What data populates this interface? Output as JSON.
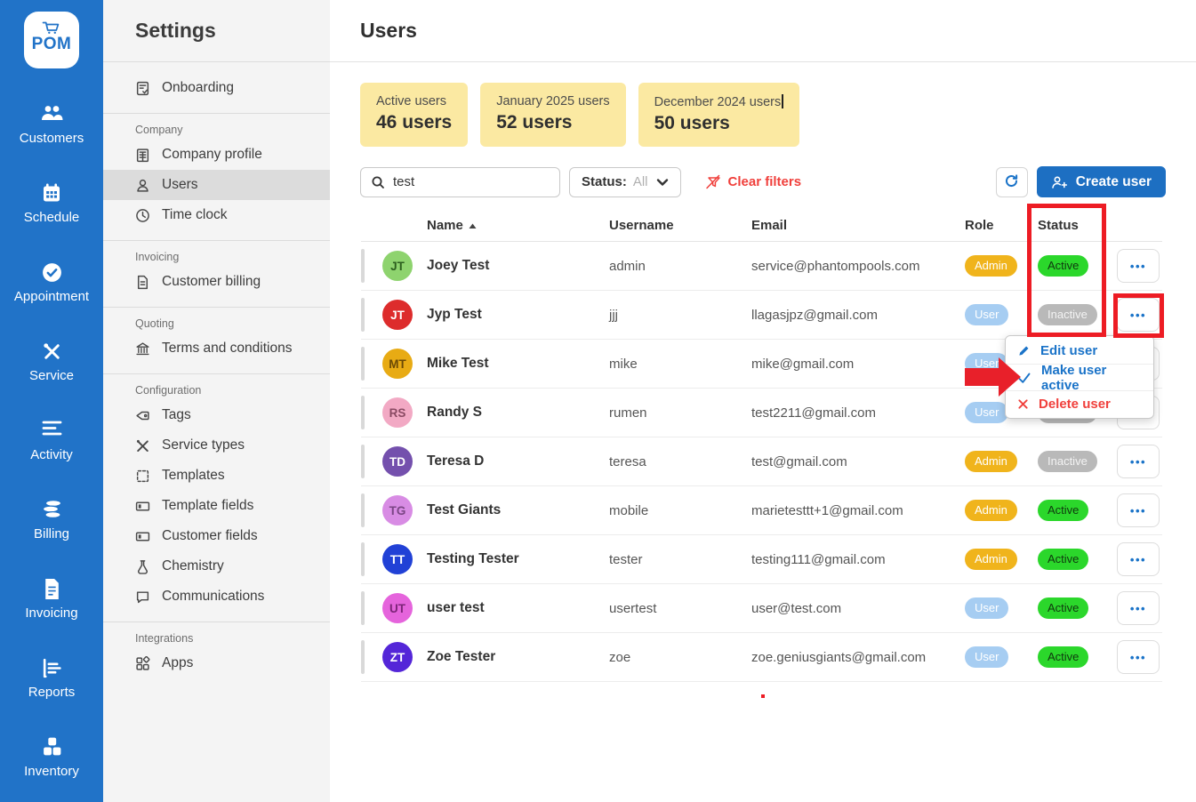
{
  "brand": {
    "logo_text": "POM",
    "logo_icon": "cart-icon"
  },
  "nav_rail": {
    "items": [
      {
        "label": "Customers",
        "icon": "customers-icon"
      },
      {
        "label": "Schedule",
        "icon": "schedule-icon"
      },
      {
        "label": "Appointment",
        "icon": "appointment-icon"
      },
      {
        "label": "Service",
        "icon": "service-icon"
      },
      {
        "label": "Activity",
        "icon": "activity-icon"
      },
      {
        "label": "Billing",
        "icon": "billing-icon"
      },
      {
        "label": "Invoicing",
        "icon": "invoicing-icon"
      },
      {
        "label": "Reports",
        "icon": "reports-icon"
      },
      {
        "label": "Inventory",
        "icon": "inventory-icon"
      }
    ]
  },
  "settings_sidebar": {
    "title": "Settings",
    "groups": [
      {
        "section": "",
        "items": [
          {
            "label": "Onboarding",
            "icon": "onboarding-icon",
            "selected": false
          }
        ]
      },
      {
        "section": "Company",
        "items": [
          {
            "label": "Company profile",
            "icon": "building-icon",
            "selected": false
          },
          {
            "label": "Users",
            "icon": "users-icon",
            "selected": true
          },
          {
            "label": "Time clock",
            "icon": "clock-icon",
            "selected": false
          }
        ]
      },
      {
        "section": "Invoicing",
        "items": [
          {
            "label": "Customer billing",
            "icon": "document-icon",
            "selected": false
          }
        ]
      },
      {
        "section": "Quoting",
        "items": [
          {
            "label": "Terms and conditions",
            "icon": "bank-icon",
            "selected": false
          }
        ]
      },
      {
        "section": "Configuration",
        "items": [
          {
            "label": "Tags",
            "icon": "tag-icon",
            "selected": false
          },
          {
            "label": "Service types",
            "icon": "tools-icon",
            "selected": false
          },
          {
            "label": "Templates",
            "icon": "template-icon",
            "selected": false
          },
          {
            "label": "Template fields",
            "icon": "template-fields-icon",
            "selected": false
          },
          {
            "label": "Customer fields",
            "icon": "customer-fields-icon",
            "selected": false
          },
          {
            "label": "Chemistry",
            "icon": "flask-icon",
            "selected": false
          },
          {
            "label": "Communications",
            "icon": "chat-icon",
            "selected": false
          }
        ]
      },
      {
        "section": "Integrations",
        "items": [
          {
            "label": "Apps",
            "icon": "apps-icon",
            "selected": false
          }
        ]
      }
    ]
  },
  "page": {
    "title": "Users"
  },
  "stats": [
    {
      "label": "Active users",
      "value": "46 users",
      "caret": false
    },
    {
      "label": "January 2025 users",
      "value": "52 users",
      "caret": false
    },
    {
      "label": "December 2024 users",
      "value": "50 users",
      "caret": true
    }
  ],
  "filters": {
    "search_value": "test",
    "status_label": "Status:",
    "status_value": "All",
    "clear_filters_label": "Clear filters",
    "create_user_label": "Create user"
  },
  "table": {
    "columns": [
      "Name",
      "Username",
      "Email",
      "Role",
      "Status"
    ],
    "rows": [
      {
        "initials": "JT",
        "avatar_bg": "#8ed36e",
        "avatar_fg": "#2c5e1e",
        "name": "Joey Test",
        "username": "admin",
        "email": "service@phantompools.com",
        "role": "Admin",
        "status": "Active"
      },
      {
        "initials": "JT",
        "avatar_bg": "#dd2c2c",
        "avatar_fg": "#ffffff",
        "name": "Jyp Test",
        "username": "jjj",
        "email": "llagasjpz@gmail.com",
        "role": "User",
        "status": "Inactive"
      },
      {
        "initials": "MT",
        "avatar_bg": "#e8ab14",
        "avatar_fg": "#6b4a06",
        "name": "Mike Test",
        "username": "mike",
        "email": "mike@gmail.com",
        "role": "User",
        "status": ""
      },
      {
        "initials": "RS",
        "avatar_bg": "#f2a9c4",
        "avatar_fg": "#8a4a63",
        "name": "Randy S",
        "username": "rumen",
        "email": "test2211@gmail.com",
        "role": "User",
        "status": "Inactive"
      },
      {
        "initials": "TD",
        "avatar_bg": "#7450ad",
        "avatar_fg": "#ffffff",
        "name": "Teresa D",
        "username": "teresa",
        "email": "test@gmail.com",
        "role": "Admin",
        "status": "Inactive"
      },
      {
        "initials": "TG",
        "avatar_bg": "#d88ce4",
        "avatar_fg": "#7a4584",
        "name": "Test Giants",
        "username": "mobile",
        "email": "marietesttt+1@gmail.com",
        "role": "Admin",
        "status": "Active"
      },
      {
        "initials": "TT",
        "avatar_bg": "#2141d6",
        "avatar_fg": "#ffffff",
        "name": "Testing Tester",
        "username": "tester",
        "email": "testing111@gmail.com",
        "role": "Admin",
        "status": "Active"
      },
      {
        "initials": "UT",
        "avatar_bg": "#e564dc",
        "avatar_fg": "#7c2478",
        "name": "user test",
        "username": "usertest",
        "email": "user@test.com",
        "role": "User",
        "status": "Active"
      },
      {
        "initials": "ZT",
        "avatar_bg": "#5426d8",
        "avatar_fg": "#ffffff",
        "name": "Zoe Tester",
        "username": "zoe",
        "email": "zoe.geniusgiants@gmail.com",
        "role": "User",
        "status": "Active"
      }
    ]
  },
  "context_menu": {
    "items": [
      {
        "label": "Edit user",
        "style": "blue",
        "icon": "pencil-icon"
      },
      {
        "label": "Make user active",
        "style": "blue",
        "icon": "check-icon"
      },
      {
        "label": "Delete user",
        "style": "red",
        "icon": "x-icon"
      }
    ]
  },
  "colors": {
    "rail_blue": "#2173c8",
    "accent_blue": "#1a73c8",
    "annotation_red": "#ed1c24",
    "danger_red": "#f0403c",
    "admin_badge": "#f0b41c",
    "user_badge": "#a6cdf2",
    "active_badge": "#2bd72b",
    "inactive_badge": "#b9b9b9",
    "stat_card_bg": "#fbe9a2"
  }
}
